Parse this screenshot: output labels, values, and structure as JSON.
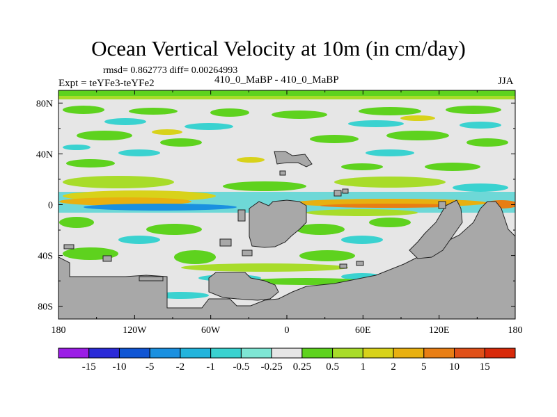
{
  "title": "Ocean Vertical Velocity at 10m (in cm/day)",
  "stats_line": "rmsd= 0.862773 diff= 0.00264993",
  "left_label": "Expt = teYFe3-teYFe2",
  "center_label": "410_0_MaBP - 410_0_MaBP",
  "right_label": "JJA",
  "chart_data": {
    "type": "heatmap",
    "title": "Ocean Vertical Velocity at 10m (in cm/day)",
    "x_ticks": [
      "180",
      "120W",
      "60W",
      "0",
      "60E",
      "120E",
      "180"
    ],
    "x_tick_values": [
      -180,
      -120,
      -60,
      0,
      60,
      120,
      180
    ],
    "y_ticks": [
      "80N",
      "40N",
      "0",
      "40S",
      "80S"
    ],
    "y_tick_values": [
      80,
      40,
      0,
      -40,
      -80
    ],
    "xlim": [
      -180,
      180
    ],
    "ylim": [
      -90,
      90
    ],
    "colorbar": {
      "levels": [
        "-15",
        "-10",
        "-5",
        "-2",
        "-1",
        "-0.5",
        "-0.25",
        "0.25",
        "0.5",
        "1",
        "2",
        "5",
        "10",
        "15"
      ],
      "colors": [
        "#9b1de6",
        "#2b2bd8",
        "#0f55d4",
        "#1a90e0",
        "#22b4dc",
        "#3ad2d0",
        "#7ee6d4",
        "#e6e6e6",
        "#5ed21e",
        "#a8dc2a",
        "#d8d21a",
        "#e8b010",
        "#e87e14",
        "#e05018",
        "#d82a0a"
      ]
    },
    "land_color": "#a8a8a8"
  }
}
